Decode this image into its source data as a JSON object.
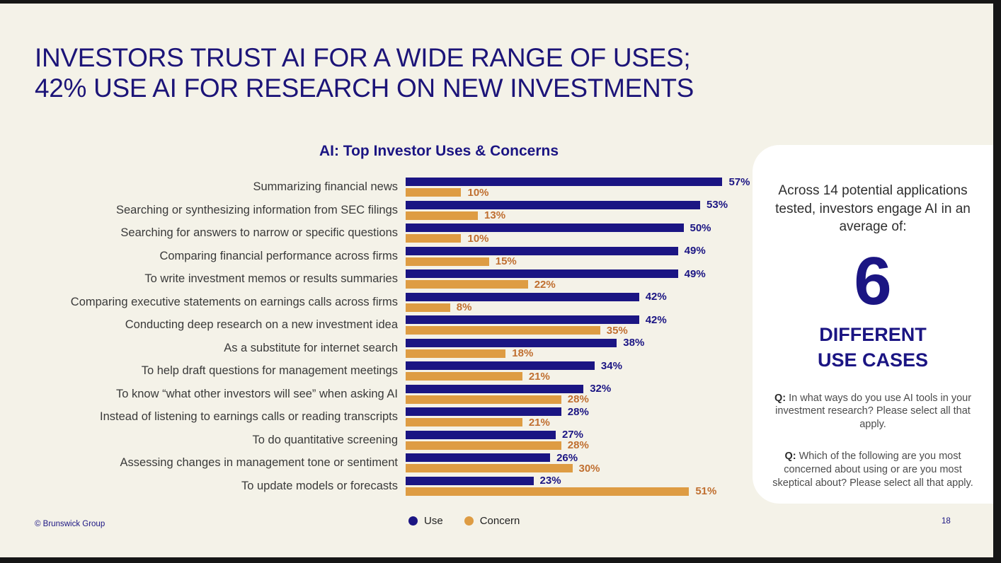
{
  "slide": {
    "title_line1": "INVESTORS TRUST AI FOR A WIDE RANGE OF USES;",
    "title_line2": "42% USE AI FOR RESEARCH ON NEW INVESTMENTS",
    "footer_copyright": "© Brunswick Group",
    "page_number": "18"
  },
  "chart_data": {
    "type": "bar",
    "orientation": "horizontal",
    "title": "AI: Top Investor Uses & Concerns",
    "categories": [
      "Summarizing financial news",
      "Searching or synthesizing information from SEC filings",
      "Searching for answers to narrow or specific questions",
      "Comparing financial performance across firms",
      "To write investment memos or results summaries",
      "Comparing executive statements on earnings calls across firms",
      "Conducting deep research on a new investment idea",
      "As a substitute for internet search",
      "To help draft questions for management meetings",
      "To know “what other investors will see” when asking AI",
      "Instead of listening to earnings calls or reading transcripts",
      "To do quantitative screening",
      "Assessing changes in management tone or sentiment",
      "To update models or forecasts"
    ],
    "series": [
      {
        "name": "Use",
        "color": "#1B1583",
        "values": [
          57,
          53,
          50,
          49,
          49,
          42,
          42,
          38,
          34,
          32,
          28,
          27,
          26,
          23
        ]
      },
      {
        "name": "Concern",
        "color": "#DE9C43",
        "values": [
          10,
          13,
          10,
          15,
          22,
          8,
          35,
          18,
          21,
          28,
          21,
          28,
          30,
          51
        ]
      }
    ],
    "value_suffix": "%",
    "value_colors": [
      "#1B1583",
      "#C06F30"
    ],
    "xlim": [
      0,
      60
    ],
    "grid": false,
    "legend_position": "bottom"
  },
  "sidebar": {
    "intro": "Across 14 potential applications tested, investors engage AI in an average of:",
    "big_number": "6",
    "big_label_line1": "DIFFERENT",
    "big_label_line2": "USE CASES",
    "questions": [
      {
        "prefix": "Q:",
        "text": "In what ways do you use AI tools in your investment research? Please select all that apply."
      },
      {
        "prefix": "Q:",
        "text": "Which of the following are you most concerned about using or are you most skeptical about? Please select all that apply."
      }
    ]
  },
  "colors": {
    "background": "#F4F2E8",
    "frame": "#161616",
    "navy": "#1B1583",
    "title_navy": "#1C1478",
    "orange": "#DE9C43",
    "orange_value_text": "#C06F30",
    "panel_white": "#FFFFFF"
  }
}
